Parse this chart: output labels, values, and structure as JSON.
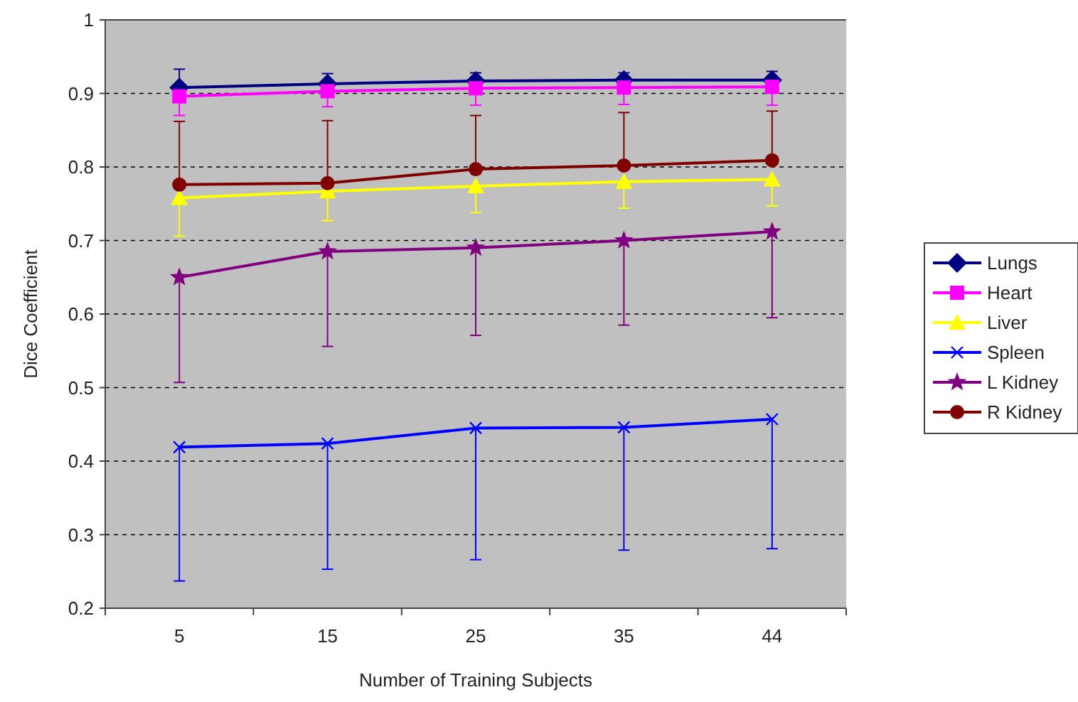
{
  "chart_data": {
    "type": "line",
    "xlabel": "Number of Training Subjects",
    "ylabel": "Dice Coefficient",
    "categories": [
      "5",
      "15",
      "25",
      "35",
      "44"
    ],
    "ylim": [
      0.2,
      1
    ],
    "yticks": [
      {
        "value": 0.2,
        "label": "0.2"
      },
      {
        "value": 0.3,
        "label": "0.3"
      },
      {
        "value": 0.4,
        "label": "0.4"
      },
      {
        "value": 0.5,
        "label": "0.5"
      },
      {
        "value": 0.6,
        "label": "0.6"
      },
      {
        "value": 0.7,
        "label": "0.7"
      },
      {
        "value": 0.8,
        "label": "0.8"
      },
      {
        "value": 0.9,
        "label": "0.9"
      },
      {
        "value": 1,
        "label": "1"
      }
    ],
    "grid": "y",
    "legend": "right",
    "line_style": "solid",
    "series": [
      {
        "name": "Lungs",
        "color": "#000080",
        "marker": "diamond",
        "values": [
          0.908,
          0.913,
          0.917,
          0.918,
          0.918
        ],
        "errors": [
          [
            0.908,
            0.933
          ],
          [
            0.913,
            0.927
          ],
          [
            0.917,
            0.928
          ],
          [
            0.918,
            0.928
          ],
          [
            0.918,
            0.93
          ]
        ]
      },
      {
        "name": "Heart",
        "color": "#ff00ff",
        "marker": "square",
        "values": [
          0.896,
          0.903,
          0.907,
          0.908,
          0.909
        ],
        "errors": [
          [
            0.87,
            0.896
          ],
          [
            0.882,
            0.903
          ],
          [
            0.884,
            0.907
          ],
          [
            0.885,
            0.908
          ],
          [
            0.884,
            0.909
          ]
        ]
      },
      {
        "name": "Liver",
        "color": "#ffff00",
        "marker": "triangle",
        "values": [
          0.758,
          0.767,
          0.774,
          0.78,
          0.783
        ],
        "errors": [
          [
            0.706,
            0.758
          ],
          [
            0.727,
            0.767
          ],
          [
            0.738,
            0.774
          ],
          [
            0.744,
            0.78
          ],
          [
            0.747,
            0.783
          ]
        ]
      },
      {
        "name": "Spleen",
        "color": "#0000ff",
        "marker": "cross",
        "values": [
          0.419,
          0.424,
          0.445,
          0.446,
          0.457
        ],
        "errors": [
          [
            0.237,
            0.419
          ],
          [
            0.253,
            0.424
          ],
          [
            0.266,
            0.445
          ],
          [
            0.279,
            0.446
          ],
          [
            0.281,
            0.457
          ]
        ]
      },
      {
        "name": "L Kidney",
        "color": "#800080",
        "marker": "star",
        "values": [
          0.65,
          0.685,
          0.69,
          0.7,
          0.712
        ],
        "errors": [
          [
            0.507,
            0.65
          ],
          [
            0.556,
            0.685
          ],
          [
            0.571,
            0.69
          ],
          [
            0.585,
            0.7
          ],
          [
            0.595,
            0.712
          ]
        ]
      },
      {
        "name": "R Kidney",
        "color": "#800000",
        "marker": "circle",
        "values": [
          0.776,
          0.778,
          0.797,
          0.802,
          0.809
        ],
        "errors": [
          [
            0.776,
            0.862
          ],
          [
            0.778,
            0.863
          ],
          [
            0.797,
            0.87
          ],
          [
            0.802,
            0.874
          ],
          [
            0.809,
            0.876
          ]
        ]
      }
    ]
  }
}
